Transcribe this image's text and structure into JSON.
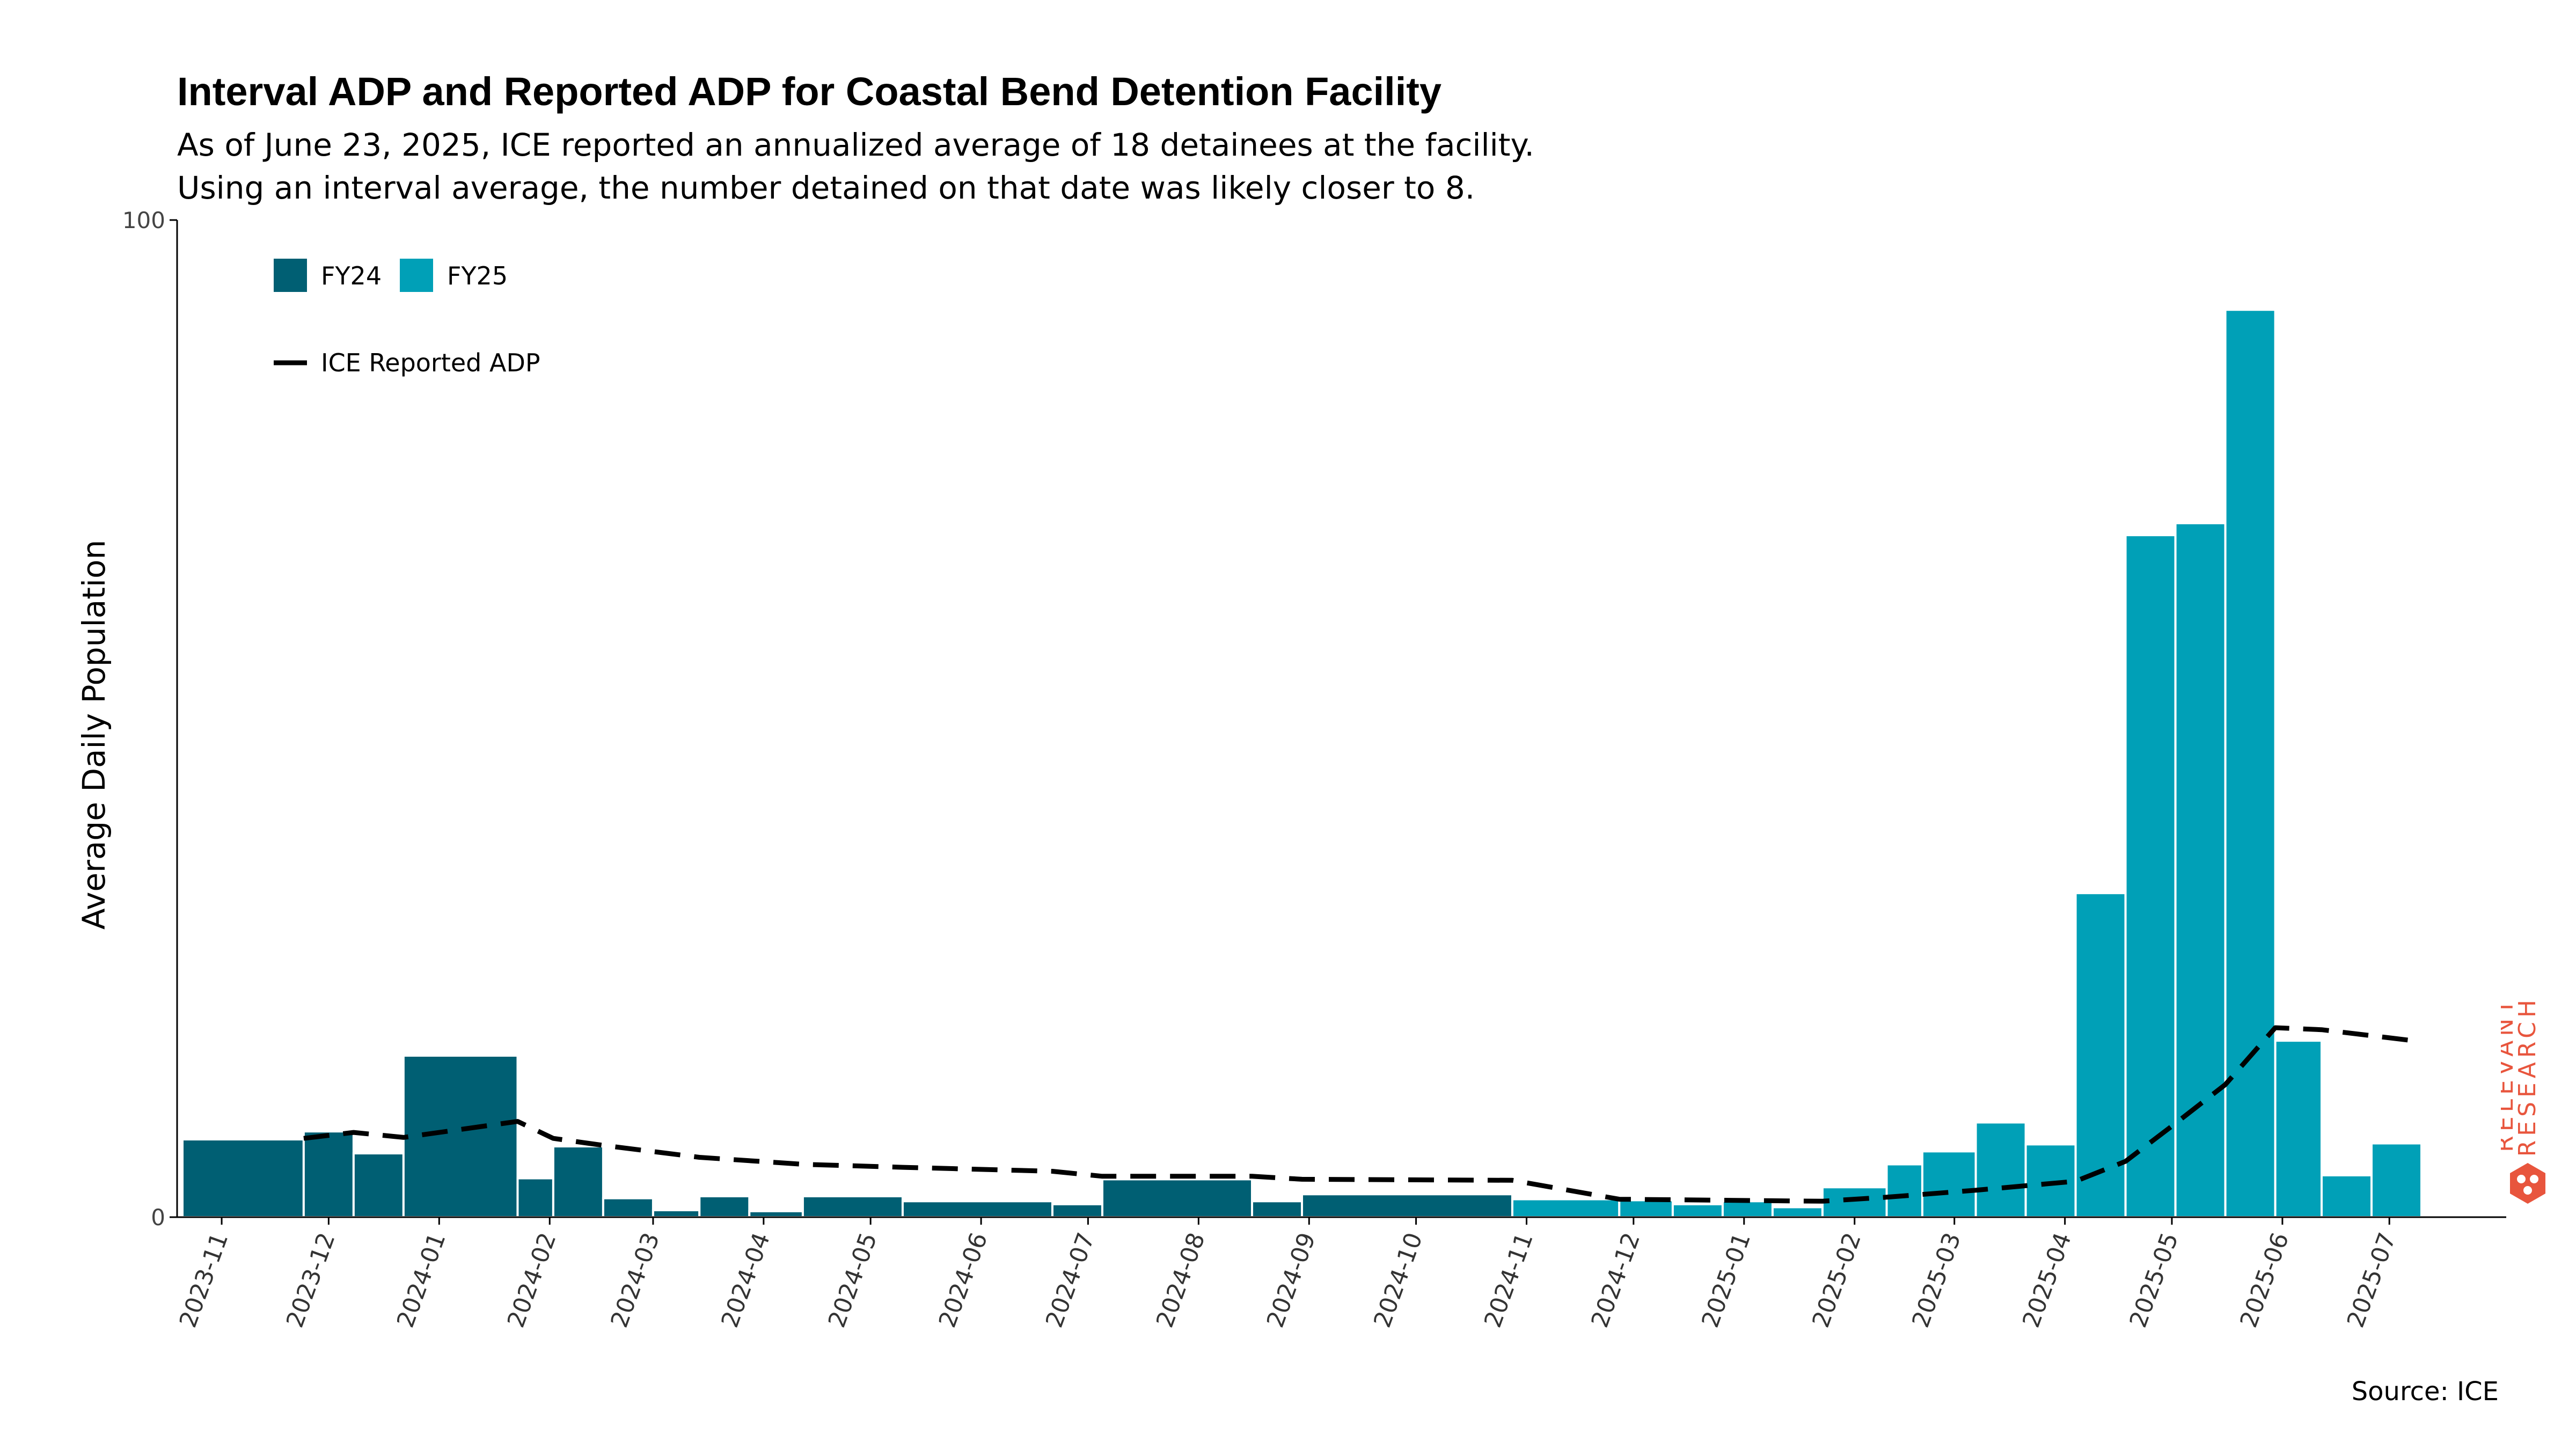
{
  "title": "Interval ADP and Reported ADP for Coastal Bend Detention Facility",
  "subtitle_lines": [
    "As of June 23, 2025, ICE reported an annualized average of 18 detainees at the facility.",
    "Using an interval average, the number detained on that date was likely closer to 8."
  ],
  "source": "Source: ICE",
  "brand_text": "RELEVANT RESEARCH",
  "colors": {
    "fy24": "#005f73",
    "fy25": "#00a0b7",
    "line": "#000000",
    "brand": "#e8553d"
  },
  "chart_data": {
    "type": "bar",
    "ylabel": "Average Daily Population",
    "xlabel": "",
    "ylim": [
      0,
      100
    ],
    "y_ticks": [
      0,
      100
    ],
    "x_ticks": [
      "2023-11",
      "2023-12",
      "2024-01",
      "2024-02",
      "2024-03",
      "2024-04",
      "2024-05",
      "2024-06",
      "2024-07",
      "2024-08",
      "2024-09",
      "2024-10",
      "2024-11",
      "2024-12",
      "2025-01",
      "2025-02",
      "2025-03",
      "2025-04",
      "2025-05",
      "2025-06",
      "2025-07"
    ],
    "legend": {
      "placement": "top-left",
      "bars": [
        "FY24",
        "FY25"
      ],
      "line": "ICE Reported ADP"
    },
    "bars": [
      {
        "start": "2023-10-21",
        "end": "2023-11-24",
        "value": 7.8,
        "series": "FY24"
      },
      {
        "start": "2023-11-24",
        "end": "2023-12-08",
        "value": 8.6,
        "series": "FY24"
      },
      {
        "start": "2023-12-08",
        "end": "2023-12-22",
        "value": 6.4,
        "series": "FY24"
      },
      {
        "start": "2023-12-22",
        "end": "2024-01-23",
        "value": 16.2,
        "series": "FY24"
      },
      {
        "start": "2024-01-23",
        "end": "2024-02-02",
        "value": 3.9,
        "series": "FY24"
      },
      {
        "start": "2024-02-02",
        "end": "2024-02-16",
        "value": 7.1,
        "series": "FY24"
      },
      {
        "start": "2024-02-16",
        "end": "2024-03-01",
        "value": 1.9,
        "series": "FY24"
      },
      {
        "start": "2024-03-01",
        "end": "2024-03-14",
        "value": 0.7,
        "series": "FY24"
      },
      {
        "start": "2024-03-14",
        "end": "2024-03-28",
        "value": 2.1,
        "series": "FY24"
      },
      {
        "start": "2024-03-28",
        "end": "2024-04-12",
        "value": 0.6,
        "series": "FY24"
      },
      {
        "start": "2024-04-12",
        "end": "2024-05-10",
        "value": 2.1,
        "series": "FY24"
      },
      {
        "start": "2024-05-10",
        "end": "2024-06-21",
        "value": 1.6,
        "series": "FY24"
      },
      {
        "start": "2024-06-21",
        "end": "2024-07-05",
        "value": 1.3,
        "series": "FY24"
      },
      {
        "start": "2024-07-05",
        "end": "2024-08-16",
        "value": 3.8,
        "series": "FY24"
      },
      {
        "start": "2024-08-16",
        "end": "2024-08-30",
        "value": 1.6,
        "series": "FY24"
      },
      {
        "start": "2024-08-30",
        "end": "2024-10-28",
        "value": 2.3,
        "series": "FY24"
      },
      {
        "start": "2024-10-28",
        "end": "2024-11-27",
        "value": 1.8,
        "series": "FY25"
      },
      {
        "start": "2024-11-27",
        "end": "2024-12-12",
        "value": 1.7,
        "series": "FY25"
      },
      {
        "start": "2024-12-12",
        "end": "2024-12-26",
        "value": 1.3,
        "series": "FY25"
      },
      {
        "start": "2024-12-26",
        "end": "2025-01-09",
        "value": 1.6,
        "series": "FY25"
      },
      {
        "start": "2025-01-09",
        "end": "2025-01-23",
        "value": 1.0,
        "series": "FY25"
      },
      {
        "start": "2025-01-23",
        "end": "2025-02-10",
        "value": 3.0,
        "series": "FY25"
      },
      {
        "start": "2025-02-10",
        "end": "2025-02-20",
        "value": 5.3,
        "series": "FY25"
      },
      {
        "start": "2025-02-20",
        "end": "2025-03-07",
        "value": 6.6,
        "series": "FY25"
      },
      {
        "start": "2025-03-07",
        "end": "2025-03-21",
        "value": 9.5,
        "series": "FY25"
      },
      {
        "start": "2025-03-21",
        "end": "2025-04-04",
        "value": 7.3,
        "series": "FY25"
      },
      {
        "start": "2025-04-04",
        "end": "2025-04-18",
        "value": 32.5,
        "series": "FY25"
      },
      {
        "start": "2025-04-18",
        "end": "2025-05-02",
        "value": 68.4,
        "series": "FY25"
      },
      {
        "start": "2025-05-02",
        "end": "2025-05-16",
        "value": 69.6,
        "series": "FY25"
      },
      {
        "start": "2025-05-16",
        "end": "2025-05-30",
        "value": 91.0,
        "series": "FY25"
      },
      {
        "start": "2025-05-30",
        "end": "2025-06-12",
        "value": 17.7,
        "series": "FY25"
      },
      {
        "start": "2025-06-12",
        "end": "2025-06-26",
        "value": 4.2,
        "series": "FY25"
      },
      {
        "start": "2025-06-26",
        "end": "2025-07-10",
        "value": 7.4,
        "series": "FY25"
      }
    ],
    "line": {
      "name": "ICE Reported ADP",
      "style": "dashed",
      "points": [
        {
          "x": "2023-11-24",
          "y": 7.9
        },
        {
          "x": "2023-12-08",
          "y": 8.5
        },
        {
          "x": "2023-12-22",
          "y": 8.0
        },
        {
          "x": "2024-01-23",
          "y": 9.6
        },
        {
          "x": "2024-02-02",
          "y": 7.9
        },
        {
          "x": "2024-02-16",
          "y": 7.2
        },
        {
          "x": "2024-03-14",
          "y": 6.0
        },
        {
          "x": "2024-04-12",
          "y": 5.3
        },
        {
          "x": "2024-05-10",
          "y": 5.0
        },
        {
          "x": "2024-06-21",
          "y": 4.6
        },
        {
          "x": "2024-07-05",
          "y": 4.1
        },
        {
          "x": "2024-08-16",
          "y": 4.1
        },
        {
          "x": "2024-08-30",
          "y": 3.8
        },
        {
          "x": "2024-10-28",
          "y": 3.7
        },
        {
          "x": "2024-11-27",
          "y": 1.8
        },
        {
          "x": "2025-01-23",
          "y": 1.6
        },
        {
          "x": "2025-02-10",
          "y": 2.0
        },
        {
          "x": "2025-03-07",
          "y": 2.7
        },
        {
          "x": "2025-04-04",
          "y": 3.6
        },
        {
          "x": "2025-04-18",
          "y": 5.6
        },
        {
          "x": "2025-05-02",
          "y": 9.4
        },
        {
          "x": "2025-05-16",
          "y": 13.3
        },
        {
          "x": "2025-05-30",
          "y": 19.0
        },
        {
          "x": "2025-06-12",
          "y": 18.8
        },
        {
          "x": "2025-07-10",
          "y": 17.6
        }
      ]
    }
  }
}
